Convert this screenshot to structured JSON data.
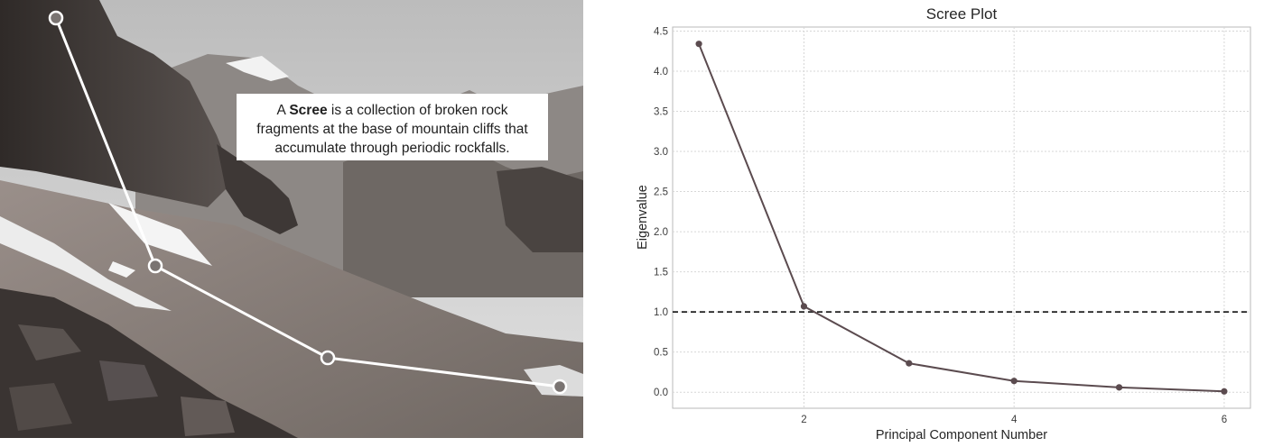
{
  "photo_panel": {
    "caption_prefix": "A",
    "caption_bold_word": "Scree",
    "caption_rest_line1": "is a collection of broken rock",
    "caption_line2": "fragments at the base of mountain cliffs that",
    "caption_line3": "accumulate through periodic rockfalls.",
    "elbow_overlay_point_count": 4
  },
  "colors": {
    "line": "#5b4b4f",
    "reference_line": "#222222",
    "grid": "#d7d7d7",
    "frame": "#b8b8b8",
    "overlay_line": "#ffffff"
  },
  "chart_data": {
    "type": "line",
    "title": "Scree Plot",
    "xlabel": "Principal Component Number",
    "ylabel": "Eigenvalue",
    "x": [
      1,
      2,
      3,
      4,
      5,
      6
    ],
    "series": [
      {
        "values": [
          4.34,
          1.07,
          0.36,
          0.14,
          0.06,
          0.01
        ]
      }
    ],
    "reference_line": {
      "y": 1.0,
      "style": "dashed"
    },
    "xlim": [
      0.75,
      6.25
    ],
    "ylim": [
      -0.2,
      4.55
    ],
    "xticks": [
      2,
      4,
      6
    ],
    "yticks": [
      0.0,
      0.5,
      1.0,
      1.5,
      2.0,
      2.5,
      3.0,
      3.5,
      4.0,
      4.5
    ],
    "grid": true
  }
}
